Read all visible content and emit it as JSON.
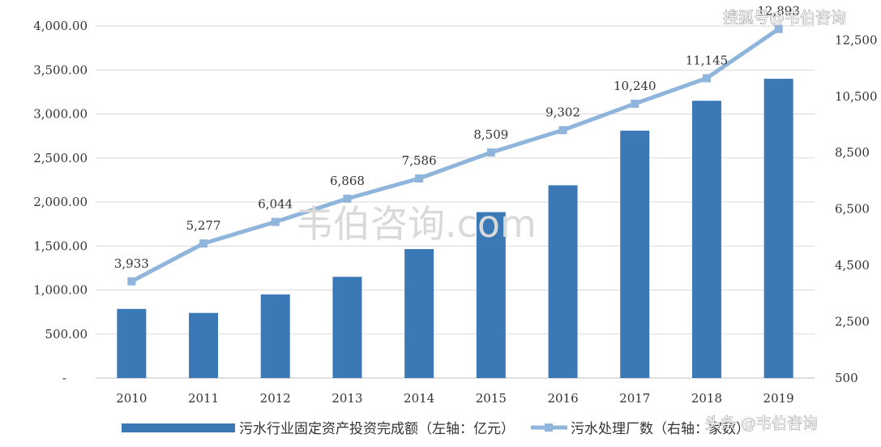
{
  "chart_data": {
    "type": "bar",
    "categories": [
      "2010",
      "2011",
      "2012",
      "2013",
      "2014",
      "2015",
      "2016",
      "2017",
      "2018",
      "2019"
    ],
    "series": [
      {
        "name": "污水行业固定资产投资完成额（左轴：亿元）",
        "type": "bar",
        "axis": "left",
        "values": [
          785,
          740,
          950,
          1150,
          1465,
          1885,
          2190,
          2810,
          3150,
          3400
        ]
      },
      {
        "name": "污水处理厂数（右轴：家数）",
        "type": "line",
        "axis": "right",
        "values": [
          3933,
          5277,
          6044,
          6868,
          7586,
          8509,
          9302,
          10240,
          11145,
          12893
        ],
        "labels": [
          "3,933",
          "5,277",
          "6,044",
          "6,868",
          "7,586",
          "8,509",
          "9,302",
          "10,240",
          "11,145",
          "12,893"
        ]
      }
    ],
    "y_left": {
      "ylim": [
        0,
        4000
      ],
      "ticks": [
        "-",
        "500.00",
        "1,000.00",
        "1,500.00",
        "2,000.00",
        "2,500.00",
        "3,000.00",
        "3,500.00",
        "4,000.00"
      ]
    },
    "y_right": {
      "ylim": [
        500,
        13000
      ],
      "tick_values": [
        500,
        2500,
        4500,
        6500,
        8500,
        10500,
        12500
      ],
      "ticks": [
        "500",
        "2,500",
        "4,500",
        "6,500",
        "8,500",
        "10,500",
        "12,500"
      ]
    },
    "grid": true,
    "legend": "bottom"
  },
  "watermarks": {
    "center": "韦伯咨询.com",
    "top_right": "搜狐号@韦伯咨询",
    "bottom_right": "头条 @韦伯咨询"
  },
  "colors": {
    "bar": "#3a79b6",
    "line": "#8fb5dc",
    "grid": "#d9d9d9"
  }
}
